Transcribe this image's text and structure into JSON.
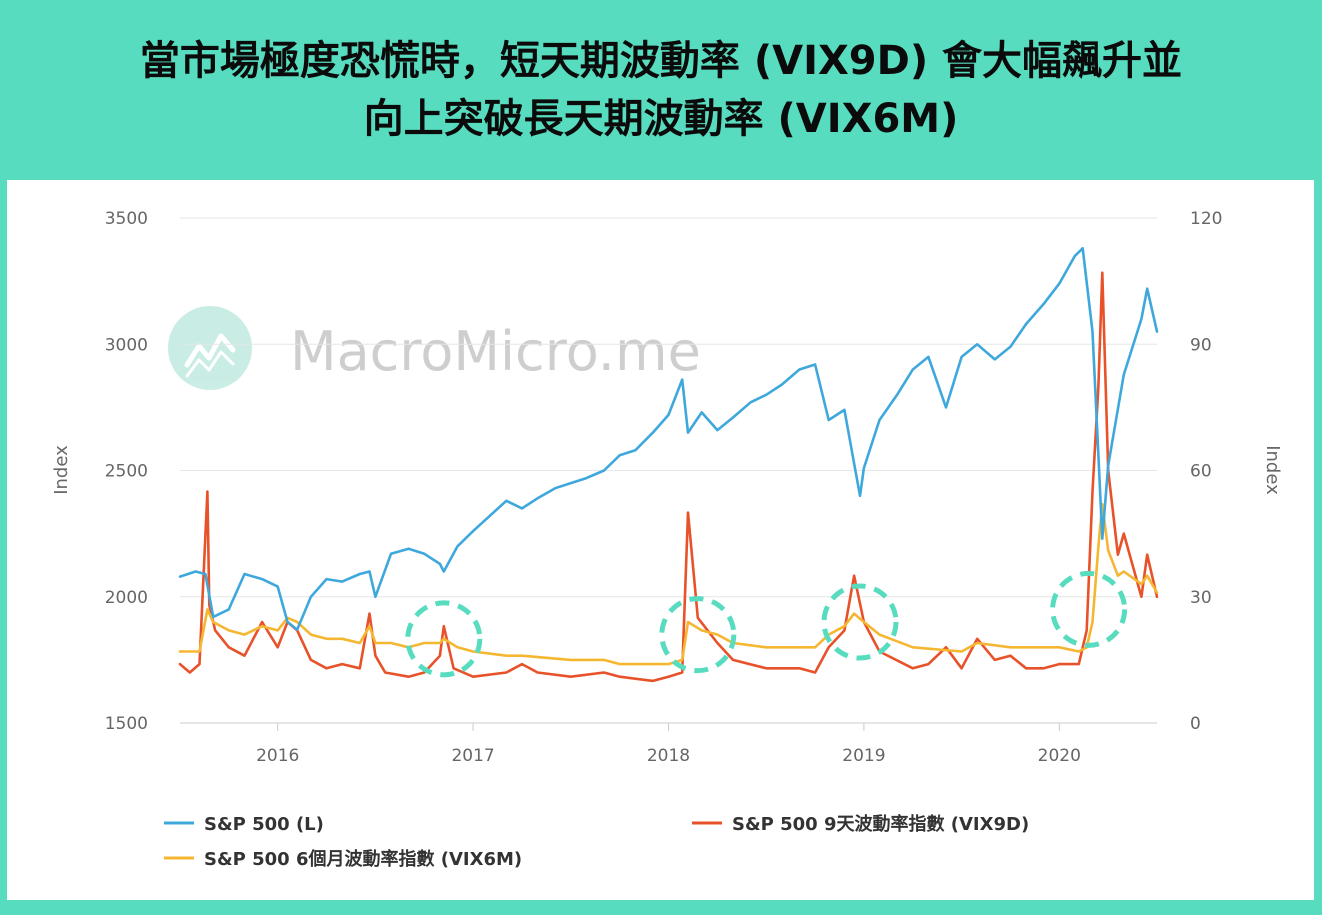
{
  "header": {
    "title_line1": "當市場極度恐慌時，短天期波動率 (VIX9D) 會大幅飆升並",
    "title_line2": "向上突破長天期波動率 (VIX6M)"
  },
  "watermark": {
    "text": "MacroMicro.me",
    "icon": "macromicro-logo-icon"
  },
  "colors": {
    "header_bg": "#58dcbf",
    "spx": "#3ea8dc",
    "vix9d": "#e8522a",
    "vix6m": "#f5b731",
    "highlight": "#58dcbf",
    "grid": "#e6e6e6"
  },
  "chart_data": {
    "type": "line",
    "y_axis_left": {
      "label": "Index",
      "range": [
        1500,
        3500
      ],
      "ticks": [
        1500,
        2000,
        2500,
        3000,
        3500
      ]
    },
    "y_axis_right": {
      "label": "Index",
      "range": [
        0,
        120
      ],
      "ticks": [
        0,
        30,
        60,
        90,
        120
      ]
    },
    "x_axis": {
      "range": [
        2015.5,
        2020.5
      ],
      "ticks": [
        "2016",
        "2017",
        "2018",
        "2019",
        "2020"
      ],
      "tick_values": [
        2016,
        2017,
        2018,
        2019,
        2020
      ]
    },
    "grid": "horizontal",
    "legend_position": "bottom",
    "series": [
      {
        "name": "S&P 500 (L)",
        "axis": "left",
        "color": "#3ea8dc",
        "x": [
          2015.5,
          2015.58,
          2015.63,
          2015.67,
          2015.75,
          2015.83,
          2015.92,
          2016.0,
          2016.05,
          2016.1,
          2016.17,
          2016.25,
          2016.33,
          2016.42,
          2016.47,
          2016.5,
          2016.58,
          2016.67,
          2016.75,
          2016.83,
          2016.85,
          2016.92,
          2017.0,
          2017.17,
          2017.25,
          2017.33,
          2017.42,
          2017.5,
          2017.58,
          2017.67,
          2017.75,
          2017.83,
          2017.92,
          2018.0,
          2018.07,
          2018.1,
          2018.17,
          2018.25,
          2018.33,
          2018.42,
          2018.5,
          2018.58,
          2018.67,
          2018.75,
          2018.82,
          2018.9,
          2018.98,
          2019.0,
          2019.08,
          2019.17,
          2019.25,
          2019.33,
          2019.42,
          2019.5,
          2019.58,
          2019.67,
          2019.75,
          2019.83,
          2019.92,
          2020.0,
          2020.08,
          2020.12,
          2020.17,
          2020.2,
          2020.22,
          2020.25,
          2020.33,
          2020.42,
          2020.45,
          2020.5
        ],
        "values": [
          2080,
          2100,
          2090,
          1920,
          1950,
          2090,
          2070,
          2040,
          1900,
          1870,
          2000,
          2070,
          2060,
          2090,
          2100,
          2000,
          2170,
          2190,
          2170,
          2130,
          2100,
          2200,
          2260,
          2380,
          2350,
          2390,
          2430,
          2450,
          2470,
          2500,
          2560,
          2580,
          2650,
          2720,
          2860,
          2650,
          2730,
          2660,
          2710,
          2770,
          2800,
          2840,
          2900,
          2920,
          2700,
          2740,
          2400,
          2510,
          2700,
          2800,
          2900,
          2950,
          2750,
          2950,
          3000,
          2940,
          2990,
          3080,
          3160,
          3240,
          3350,
          3380,
          3050,
          2560,
          2230,
          2520,
          2880,
          3100,
          3220,
          3050
        ]
      },
      {
        "name": "S&P 500 9天波動率指數 (VIX9D)",
        "axis": "right",
        "color": "#e8522a",
        "x": [
          2015.5,
          2015.55,
          2015.6,
          2015.64,
          2015.65,
          2015.68,
          2015.75,
          2015.83,
          2015.92,
          2016.0,
          2016.05,
          2016.1,
          2016.17,
          2016.25,
          2016.33,
          2016.42,
          2016.47,
          2016.5,
          2016.55,
          2016.67,
          2016.75,
          2016.83,
          2016.85,
          2016.9,
          2017.0,
          2017.17,
          2017.25,
          2017.33,
          2017.5,
          2017.67,
          2017.75,
          2017.92,
          2018.0,
          2018.07,
          2018.1,
          2018.15,
          2018.25,
          2018.33,
          2018.5,
          2018.67,
          2018.75,
          2018.82,
          2018.9,
          2018.95,
          2019.0,
          2019.08,
          2019.25,
          2019.33,
          2019.42,
          2019.5,
          2019.58,
          2019.67,
          2019.75,
          2019.83,
          2019.92,
          2020.0,
          2020.1,
          2020.14,
          2020.17,
          2020.2,
          2020.22,
          2020.25,
          2020.3,
          2020.33,
          2020.42,
          2020.45,
          2020.5
        ],
        "values": [
          14,
          12,
          14,
          55,
          28,
          22,
          18,
          16,
          24,
          18,
          24,
          22,
          15,
          13,
          14,
          13,
          26,
          16,
          12,
          11,
          12,
          16,
          23,
          13,
          11,
          12,
          14,
          12,
          11,
          12,
          11,
          10,
          11,
          12,
          50,
          25,
          19,
          15,
          13,
          13,
          12,
          18,
          22,
          35,
          24,
          17,
          13,
          14,
          18,
          13,
          20,
          15,
          16,
          13,
          13,
          14,
          14,
          22,
          55,
          80,
          107,
          60,
          40,
          45,
          30,
          40,
          30
        ]
      },
      {
        "name": "S&P 500 6個月波動率指數 (VIX6M)",
        "axis": "right",
        "color": "#f5b731",
        "x": [
          2015.5,
          2015.6,
          2015.64,
          2015.67,
          2015.75,
          2015.83,
          2015.92,
          2016.0,
          2016.05,
          2016.1,
          2016.17,
          2016.25,
          2016.33,
          2016.42,
          2016.47,
          2016.5,
          2016.58,
          2016.67,
          2016.75,
          2016.83,
          2016.85,
          2016.92,
          2017.0,
          2017.17,
          2017.25,
          2017.5,
          2017.67,
          2017.75,
          2017.92,
          2018.0,
          2018.07,
          2018.1,
          2018.17,
          2018.25,
          2018.33,
          2018.5,
          2018.67,
          2018.75,
          2018.82,
          2018.9,
          2018.95,
          2019.0,
          2019.08,
          2019.25,
          2019.5,
          2019.58,
          2019.75,
          2019.92,
          2020.0,
          2020.1,
          2020.14,
          2020.17,
          2020.2,
          2020.22,
          2020.25,
          2020.3,
          2020.33,
          2020.42,
          2020.45,
          2020.5
        ],
        "values": [
          17,
          17,
          27,
          24,
          22,
          21,
          23,
          22,
          25,
          24,
          21,
          20,
          20,
          19,
          23,
          19,
          19,
          18,
          19,
          19,
          20,
          18,
          17,
          16,
          16,
          15,
          15,
          14,
          14,
          14,
          15,
          24,
          22,
          21,
          19,
          18,
          18,
          18,
          21,
          23,
          26,
          24,
          21,
          18,
          17,
          19,
          18,
          18,
          18,
          17,
          18,
          24,
          42,
          52,
          41,
          35,
          36,
          33,
          35,
          31
        ]
      }
    ],
    "highlights": [
      {
        "x": 2016.85,
        "y": 20
      },
      {
        "x": 2018.15,
        "y": 21
      },
      {
        "x": 2018.98,
        "y": 24
      },
      {
        "x": 2020.15,
        "y": 27
      }
    ]
  }
}
